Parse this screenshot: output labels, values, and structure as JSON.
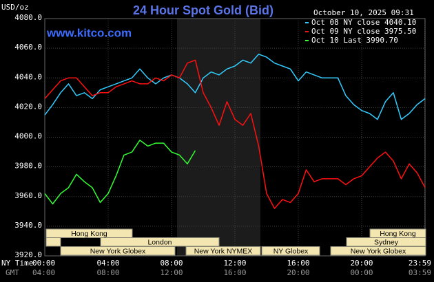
{
  "chart_data": {
    "type": "line",
    "title": "24 Hour Spot Gold (Bid)",
    "y_label": "USD/oz",
    "source": "www.kitco.com",
    "timestamp": "October 10, 2025 09:31",
    "x_label": "NY Time",
    "x2_label": "GMT",
    "x": [
      0,
      0.5,
      1,
      1.5,
      2,
      2.5,
      3,
      3.5,
      4,
      4.5,
      5,
      5.5,
      6,
      6.5,
      7,
      7.5,
      8,
      8.5,
      9,
      9.5,
      10,
      10.5,
      11,
      11.5,
      12,
      12.5,
      13,
      13.5,
      14,
      14.5,
      15,
      15.5,
      16,
      16.5,
      17,
      17.5,
      18,
      18.5,
      19,
      19.5,
      20,
      20.5,
      21,
      21.5,
      22,
      22.5,
      23,
      23.5,
      24
    ],
    "series": [
      {
        "name": "Oct 08 NY close 4040.10",
        "color": "#33ccff",
        "values": [
          4015,
          4022,
          4030,
          4036,
          4028,
          4030,
          4026,
          4032,
          4034,
          4036,
          4038,
          4040,
          4046,
          4040,
          4036,
          4040,
          4042,
          4040,
          4036,
          4030,
          4040,
          4044,
          4042,
          4046,
          4048,
          4052,
          4050,
          4056,
          4054,
          4050,
          4048,
          4046,
          4038,
          4044,
          4042,
          4040,
          4040,
          4040,
          4028,
          4022,
          4018,
          4016,
          4012,
          4024,
          4030,
          4012,
          4016,
          4022,
          4026
        ]
      },
      {
        "name": "Oct 09 NY close 3975.50",
        "color": "#ff1111",
        "values": [
          4026,
          4032,
          4038,
          4040,
          4040,
          4034,
          4028,
          4030,
          4030,
          4034,
          4036,
          4038,
          4036,
          4036,
          4040,
          4038,
          4042,
          4040,
          4050,
          4052,
          4030,
          4020,
          4008,
          4024,
          4012,
          4008,
          4016,
          3994,
          3962,
          3952,
          3958,
          3956,
          3962,
          3978,
          3970,
          3972,
          3972,
          3972,
          3968,
          3972,
          3974,
          3980,
          3986,
          3990,
          3984,
          3972,
          3982,
          3976,
          3966
        ]
      },
      {
        "name": "Oct 10 Last 3990.70",
        "color": "#33ff33",
        "values": [
          3962,
          3955,
          3962,
          3966,
          3975,
          3970,
          3966,
          3956,
          3962,
          3974,
          3988,
          3990,
          3998,
          3994,
          3996,
          3996,
          3990,
          3988,
          3982,
          3991,
          null,
          null,
          null,
          null,
          null,
          null,
          null,
          null,
          null,
          null,
          null,
          null,
          null,
          null,
          null,
          null,
          null,
          null,
          null,
          null,
          null,
          null,
          null,
          null,
          null,
          null,
          null,
          null,
          null
        ]
      }
    ],
    "xlim": [
      0,
      24
    ],
    "xticks": [
      {
        "value": 0,
        "label": "00:00"
      },
      {
        "value": 4,
        "label": "04:00"
      },
      {
        "value": 8,
        "label": "08:00"
      },
      {
        "value": 12,
        "label": "12:00"
      },
      {
        "value": 16,
        "label": "16:00"
      },
      {
        "value": 20,
        "label": "20:00"
      },
      {
        "value": 23.98,
        "label": "23:59"
      }
    ],
    "x2ticks": [
      "04:00",
      "08:00",
      "12:00",
      "16:00",
      "20:00",
      "00:00",
      "03:59"
    ],
    "ylim": [
      3920,
      4080
    ],
    "yticks": [
      {
        "value": 3920,
        "label": "3920.0"
      },
      {
        "value": 3940,
        "label": "3940.0"
      },
      {
        "value": 3960,
        "label": "3960.0"
      },
      {
        "value": 3980,
        "label": "3980.0"
      },
      {
        "value": 4000,
        "label": "4000.0"
      },
      {
        "value": 4020,
        "label": "4020.0"
      },
      {
        "value": 4040,
        "label": "4040.0"
      },
      {
        "value": 4060,
        "label": "4060.0"
      },
      {
        "value": 4080,
        "label": "4080.0"
      }
    ],
    "grid": true,
    "legend": "upper right",
    "sessions": [
      "Hong Kong",
      "London",
      "New York Globex",
      "New York NYMEX",
      "NY Globex",
      "Sydney",
      "Hong Kong",
      "New York Globex"
    ]
  }
}
